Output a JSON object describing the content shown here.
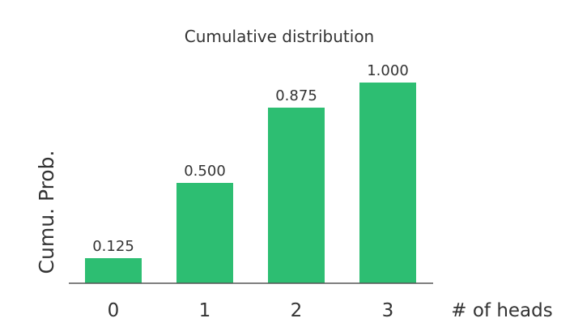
{
  "chart_data": {
    "type": "bar",
    "title": "Cumulative distribution",
    "xlabel": "# of heads",
    "ylabel": "Cumu. Prob.",
    "categories": [
      "0",
      "1",
      "2",
      "3"
    ],
    "values": [
      0.125,
      0.5,
      0.875,
      1.0
    ],
    "value_labels": [
      "0.125",
      "0.500",
      "0.875",
      "1.000"
    ],
    "ylim": [
      0,
      1
    ],
    "grid": false,
    "colors": {
      "bar": "#2dbe72",
      "axis": "#555555",
      "text": "#333333"
    }
  }
}
